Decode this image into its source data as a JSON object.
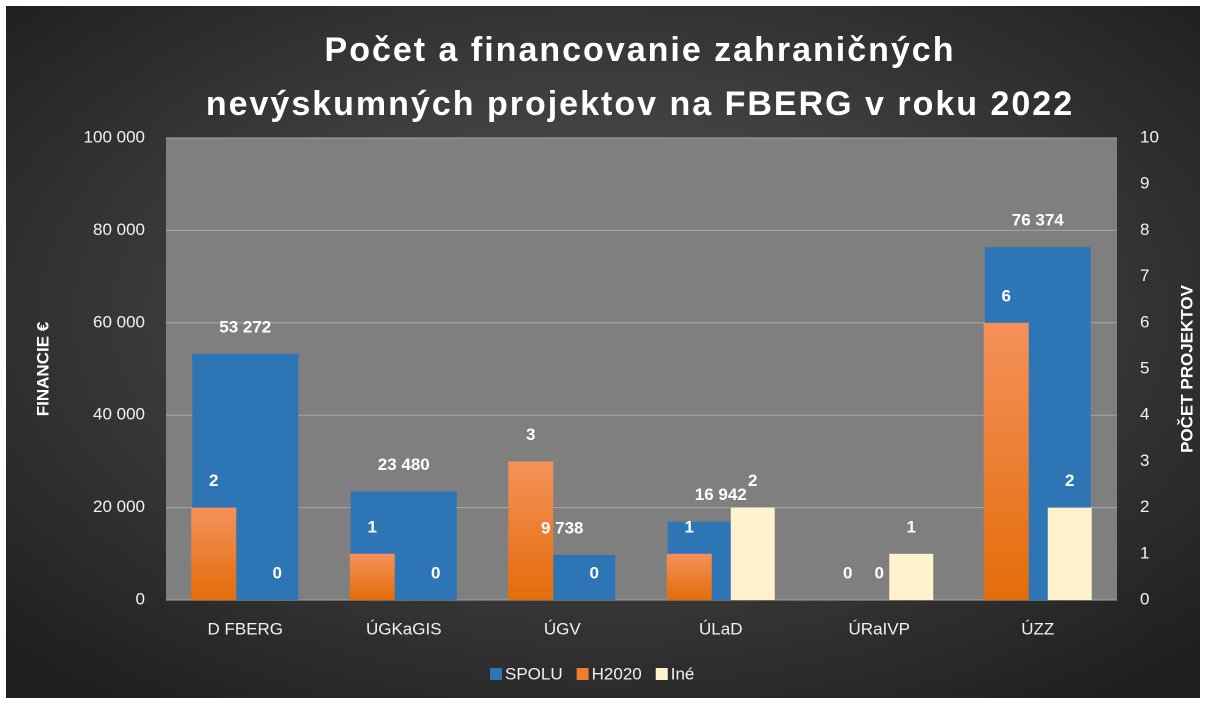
{
  "chart_data": {
    "type": "bar",
    "title": [
      "Počet a financovanie zahraničných",
      "nevýskumných projektov na FBERG v roku 2022"
    ],
    "y_label": "FINANCIE €",
    "y2_label": "POČET PROJEKTOV",
    "categories": [
      "D FBERG",
      "ÚGKaGIS",
      "ÚGV",
      "ÚLaD",
      "ÚRaIVP",
      "ÚZZ"
    ],
    "series": [
      {
        "name": "SPOLU",
        "color": "#2e75b6",
        "values": [
          53272,
          23480,
          9738,
          16942,
          0,
          76374
        ],
        "value_labels": [
          "53 272",
          "23 480",
          "9 738",
          "16 942",
          "0",
          "76 374"
        ]
      },
      {
        "name": "H2020",
        "color": "#ed7d31",
        "axis": "y2",
        "values": [
          2,
          1,
          3,
          1,
          0,
          6
        ]
      },
      {
        "name": "Iné",
        "color": "#fff2cc",
        "axis": "y2",
        "values": [
          0,
          0,
          0,
          2,
          1,
          2
        ]
      }
    ],
    "ylim": [
      0,
      100000
    ],
    "yticks": [
      {
        "value": 0,
        "label": "0"
      },
      {
        "value": 20000,
        "label": "20 000"
      },
      {
        "value": 40000,
        "label": "40 000"
      },
      {
        "value": 60000,
        "label": "60 000"
      },
      {
        "value": 80000,
        "label": "80 000"
      },
      {
        "value": 100000,
        "label": "100 000"
      }
    ],
    "y2lim": [
      0,
      10
    ],
    "y2ticks": [
      0,
      1,
      2,
      3,
      4,
      5,
      6,
      7,
      8,
      9,
      10
    ],
    "grid": true,
    "legend": "bottom"
  }
}
